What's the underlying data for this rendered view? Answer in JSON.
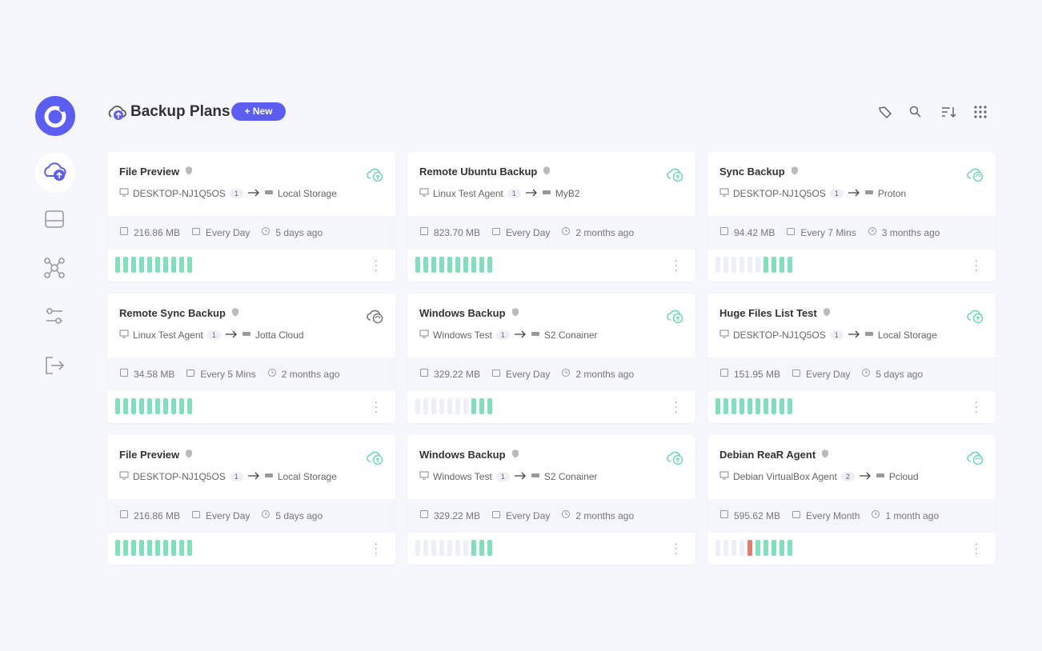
{
  "header": {
    "title": "Backup Plans",
    "new_button": "+ New"
  },
  "cards": [
    {
      "title": "File Preview",
      "agent": "DESKTOP-NJ1Q5OS",
      "count": "1",
      "destination": "Local Storage",
      "size": "216.86 MB",
      "frequency": "Every Day",
      "last_run": "5 days ago"
    },
    {
      "title": "Remote Ubuntu Backup",
      "agent": "Linux Test Agent",
      "count": "1",
      "destination": "MyB2",
      "size": "823.70 MB",
      "frequency": "Every Day",
      "last_run": "2 months ago"
    },
    {
      "title": "Sync Backup",
      "agent": "DESKTOP-NJ1Q5OS",
      "count": "1",
      "destination": "Proton",
      "size": "94.42 MB",
      "frequency": "Every 7 Mins",
      "last_run": "3 months ago"
    },
    {
      "title": "Remote Sync Backup",
      "agent": "Linux Test Agent",
      "count": "1",
      "destination": "Jotta Cloud",
      "size": "34.58 MB",
      "frequency": "Every 5 Mins",
      "last_run": "2 months ago"
    },
    {
      "title": "Windows Backup",
      "agent": "Windows Test",
      "count": "1",
      "destination": "S2 Conainer",
      "size": "329.22 MB",
      "frequency": "Every Day",
      "last_run": "2 months ago"
    },
    {
      "title": "Huge Files List Test",
      "agent": "DESKTOP-NJ1Q5OS",
      "count": "1",
      "destination": "Local Storage",
      "size": "151.95 MB",
      "frequency": "Every Day",
      "last_run": "5 days ago"
    },
    {
      "title": "File Preview",
      "agent": "DESKTOP-NJ1Q5OS",
      "count": "1",
      "destination": "Local Storage",
      "size": "216.86 MB",
      "frequency": "Every Day",
      "last_run": "5 days ago"
    },
    {
      "title": "Windows Backup",
      "agent": "Windows Test",
      "count": "1",
      "destination": "S2 Conainer",
      "size": "329.22 MB",
      "frequency": "Every Day",
      "last_run": "2 months ago"
    },
    {
      "title": "Debian ReaR Agent",
      "agent": "Debian VirtualBox Agent",
      "count": "2",
      "destination": "Pcloud",
      "size": "595.62 MB",
      "frequency": "Every Month",
      "last_run": "1 month ago"
    }
  ]
}
